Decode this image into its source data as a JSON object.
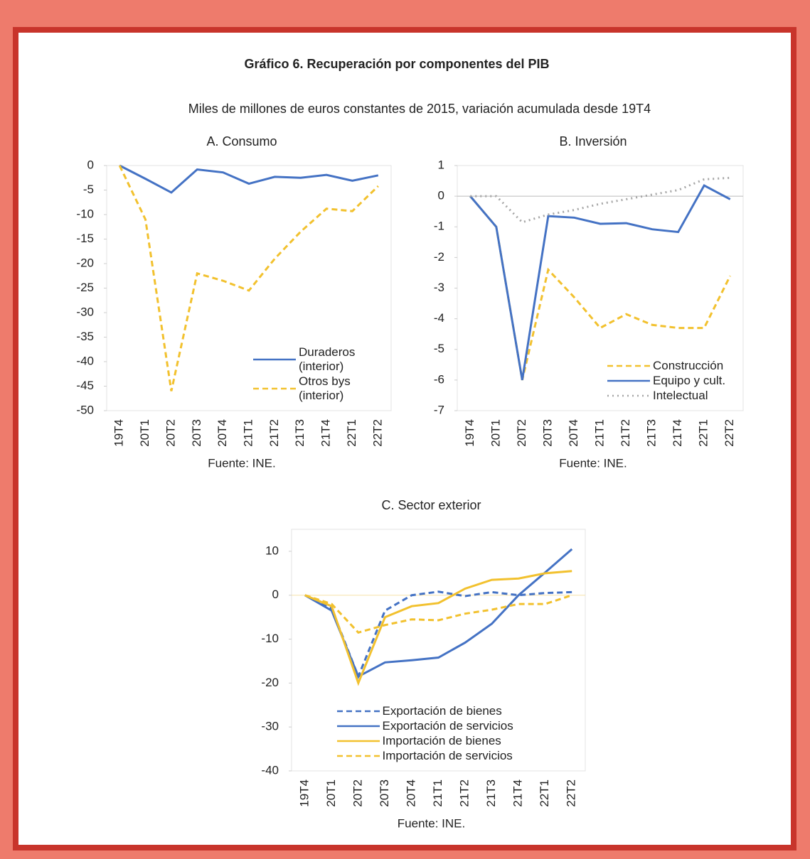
{
  "header": {
    "title": "Gráfico 6. Recuperación por componentes del PIB",
    "subtitle": "Miles de millones de euros constantes de 2015, variación acumulada desde 19T4"
  },
  "chart_data": [
    {
      "type": "line",
      "title": "A.   Consumo",
      "source": "Fuente: INE.",
      "categories": [
        "19T4",
        "20T1",
        "20T2",
        "20T3",
        "20T4",
        "21T1",
        "21T2",
        "21T3",
        "21T4",
        "22T1",
        "22T2"
      ],
      "ylim": [
        -50,
        0
      ],
      "yticks": [
        0,
        -5,
        -10,
        -15,
        -20,
        -25,
        -30,
        -35,
        -40,
        -45,
        -50
      ],
      "legend": "lower right",
      "zero_line": false,
      "series": [
        {
          "name": "Duraderos (interior)",
          "color": "#4472c4",
          "dash": "solid",
          "values": [
            0,
            -2.7,
            -5.5,
            -0.8,
            -1.4,
            -3.7,
            -2.3,
            -2.5,
            -1.9,
            -3.1,
            -2.0
          ]
        },
        {
          "name": "Otros bys (interior)",
          "color": "#f2c12e",
          "dash": "dashed",
          "values": [
            0,
            -11,
            -46,
            -22,
            -23.5,
            -25.5,
            -19,
            -13.5,
            -8.8,
            -9.3,
            -4.2
          ]
        }
      ]
    },
    {
      "type": "line",
      "title": "B.   Inversión",
      "source": "Fuente: INE.",
      "categories": [
        "19T4",
        "20T1",
        "20T2",
        "20T3",
        "20T4",
        "21T1",
        "21T2",
        "21T3",
        "21T4",
        "22T1",
        "22T2"
      ],
      "ylim": [
        -7,
        1
      ],
      "yticks": [
        1,
        0,
        -1,
        -2,
        -3,
        -4,
        -5,
        -6,
        -7
      ],
      "legend": "lower right",
      "zero_line": true,
      "series": [
        {
          "name": "Construcción",
          "color": "#f2c12e",
          "dash": "dashed",
          "values": [
            0,
            -1.0,
            -6.0,
            -2.4,
            -3.3,
            -4.3,
            -3.85,
            -4.2,
            -4.3,
            -4.3,
            -2.6
          ]
        },
        {
          "name": "Equipo y cult.",
          "color": "#4472c4",
          "dash": "solid",
          "values": [
            0,
            -1.0,
            -6.0,
            -0.65,
            -0.7,
            -0.9,
            -0.88,
            -1.08,
            -1.17,
            0.35,
            -0.1
          ]
        },
        {
          "name": "Intelectual",
          "color": "#a6a6a6",
          "dash": "dotted",
          "values": [
            0,
            0,
            -0.85,
            -0.6,
            -0.45,
            -0.25,
            -0.1,
            0.05,
            0.2,
            0.55,
            0.6
          ]
        }
      ]
    },
    {
      "type": "line",
      "title": "C.   Sector exterior",
      "source": "Fuente: INE.",
      "categories": [
        "19T4",
        "20T1",
        "20T2",
        "20T3",
        "20T4",
        "21T1",
        "21T2",
        "21T3",
        "21T4",
        "22T1",
        "22T2"
      ],
      "ylim": [
        -40,
        15
      ],
      "yticks": [
        10,
        0,
        -10,
        -20,
        -30,
        -40
      ],
      "legend": "lower center",
      "zero_line": true,
      "series": [
        {
          "name": "Exportación de bienes",
          "color": "#4472c4",
          "dash": "dashed",
          "values": [
            0,
            -3,
            -18.5,
            -3.5,
            0,
            0.8,
            -0.2,
            0.7,
            0,
            0.5,
            0.7
          ]
        },
        {
          "name": "Exportación de servicios",
          "color": "#4472c4",
          "dash": "solid",
          "values": [
            0,
            -3.5,
            -18.5,
            -15.3,
            -14.8,
            -14.2,
            -10.8,
            -6.5,
            0,
            5.2,
            10.5
          ]
        },
        {
          "name": "Importación de bienes",
          "color": "#f2c12e",
          "dash": "solid",
          "values": [
            0,
            -2.5,
            -20,
            -5,
            -2.5,
            -1.8,
            1.5,
            3.5,
            3.8,
            5,
            5.5
          ]
        },
        {
          "name": "Importación de servicios",
          "color": "#f2c12e",
          "dash": "dashed",
          "values": [
            0,
            -2,
            -8.5,
            -6.8,
            -5.5,
            -5.7,
            -4.2,
            -3.3,
            -2,
            -2,
            0
          ]
        }
      ]
    }
  ]
}
